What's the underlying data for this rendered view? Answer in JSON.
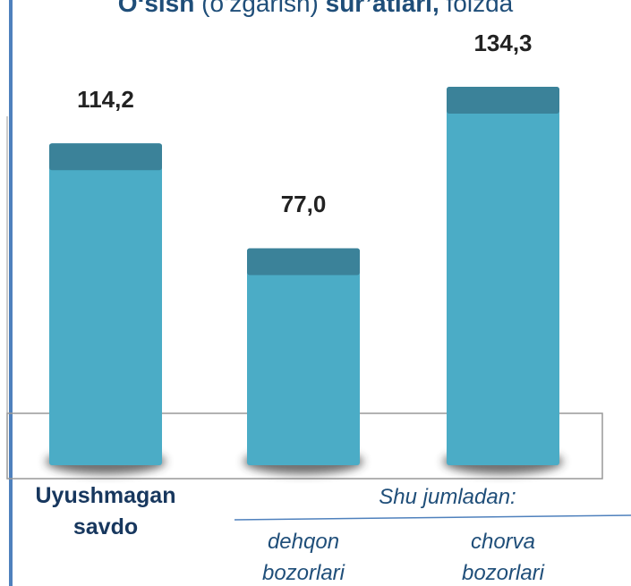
{
  "chart_data": {
    "type": "bar",
    "title": [
      "O‘sish",
      " (o‘zgarish) ",
      "sur’atlari,",
      " foizda"
    ],
    "categories": [
      "Uyushmagan savdo",
      "dehqon bozorlari",
      "chorva bozorlari"
    ],
    "group_label": "Shu jumladan:",
    "values": [
      114.2,
      77.0,
      134.3
    ],
    "value_labels": [
      "114,2",
      "77,0",
      "134,3"
    ],
    "color": "#4bacc6",
    "cap_color": "#3b8299"
  }
}
